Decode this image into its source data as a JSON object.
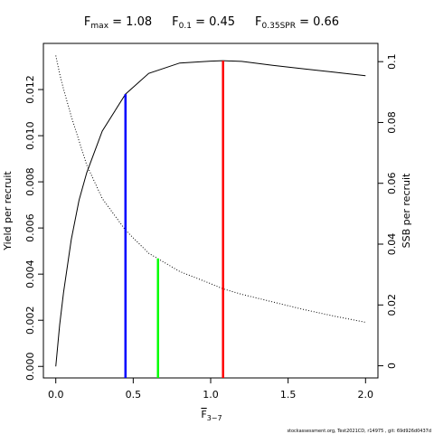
{
  "chart_data": {
    "type": "line",
    "title_parts": [
      {
        "main": "F",
        "sub": "max",
        "rest": " = 1.08"
      },
      {
        "main": "F",
        "sub": "0.1",
        "rest": " = 0.45"
      },
      {
        "main": "F",
        "sub": "0.35SPR",
        "rest": " = 0.66"
      }
    ],
    "xlabel": {
      "main": "F",
      "sub": "3−7"
    },
    "ylabel": "Yield per recruit",
    "y2label": "SSB per recruit",
    "footnote": "stockassessment.org, Test2021CD, r14975 , git: 69d926d0437d",
    "x": [
      0,
      0.025,
      0.05,
      0.1,
      0.15,
      0.2,
      0.3,
      0.45,
      0.6,
      0.8,
      1.0,
      1.08,
      1.2,
      1.4,
      1.6,
      1.8,
      2.0
    ],
    "series": [
      {
        "name": "Yield per recruit",
        "color": "#000000",
        "style": "solid",
        "values": [
          0,
          0.0018,
          0.0032,
          0.0055,
          0.0072,
          0.0084,
          0.0102,
          0.0118,
          0.0127,
          0.01315,
          0.01323,
          0.01325,
          0.01322,
          0.01305,
          0.0129,
          0.01275,
          0.0126
        ]
      },
      {
        "name": "SSB per recruit",
        "color": "#000000",
        "style": "dotted",
        "axis": "y2",
        "values": [
          0.102,
          0.096,
          0.091,
          0.082,
          0.074,
          0.066,
          0.055,
          0.0446,
          0.037,
          0.031,
          0.027,
          0.0253,
          0.0235,
          0.021,
          0.0185,
          0.0163,
          0.0143
        ]
      }
    ],
    "reference_lines": [
      {
        "x": 0.45,
        "y": 0.0118,
        "color": "#0000ff"
      },
      {
        "x": 0.66,
        "y": 0.00468,
        "color": "#00ff00"
      },
      {
        "x": 1.08,
        "y": 0.01325,
        "color": "#ff0000"
      }
    ],
    "xlim": [
      -0.08,
      2.08
    ],
    "xticks": [
      {
        "value": 0,
        "label": "0.0"
      },
      {
        "value": 0.5,
        "label": "0.5"
      },
      {
        "value": 1,
        "label": "1.0"
      },
      {
        "value": 1.5,
        "label": "1.5"
      },
      {
        "value": 2,
        "label": "2.0"
      }
    ],
    "ylim": [
      -0.0005,
      0.014
    ],
    "yticks": [
      {
        "value": 0,
        "label": "0.000"
      },
      {
        "value": 0.002,
        "label": "0.002"
      },
      {
        "value": 0.004,
        "label": "0.004"
      },
      {
        "value": 0.006,
        "label": "0.006"
      },
      {
        "value": 0.008,
        "label": "0.008"
      },
      {
        "value": 0.01,
        "label": "0.010"
      },
      {
        "value": 0.012,
        "label": "0.012"
      }
    ],
    "y2lim": [
      -0.004,
      0.106
    ],
    "y2ticks": [
      0,
      0.02,
      0.04,
      0.06,
      0.08,
      0.1
    ]
  }
}
